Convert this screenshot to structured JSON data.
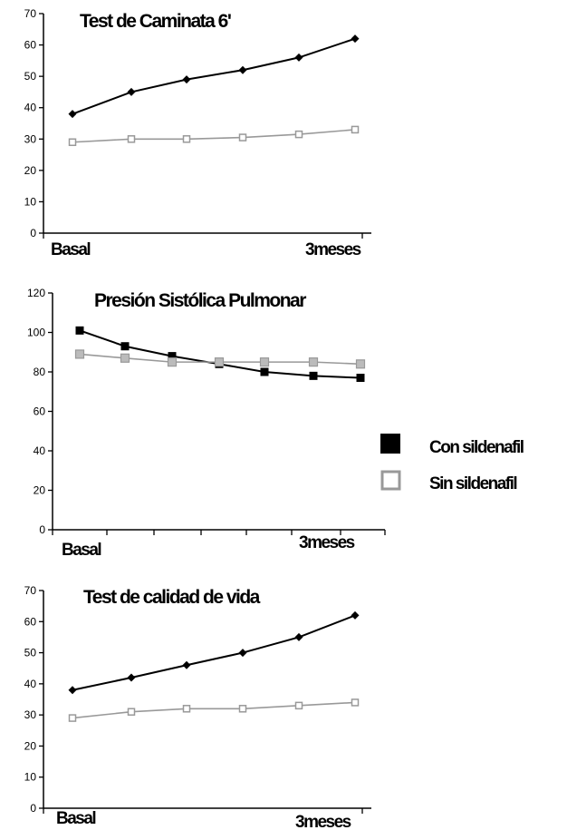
{
  "chart_data": [
    {
      "type": "line",
      "title": "Test de Caminata 6'",
      "xlabel": "",
      "ylabel": "",
      "ylim": [
        0,
        70
      ],
      "yticks": [
        0,
        10,
        20,
        30,
        40,
        50,
        60,
        70
      ],
      "x_labels": [
        "Basal",
        "3meses"
      ],
      "grid": false,
      "series": [
        {
          "name": "Con sildenafil",
          "values": [
            38,
            45,
            49,
            52,
            56,
            62
          ]
        },
        {
          "name": "Sin sildenafil",
          "values": [
            29,
            30,
            30,
            30.5,
            31.5,
            33
          ]
        }
      ]
    },
    {
      "type": "line",
      "title": "Presión Sistólica Pulmonar",
      "xlabel": "",
      "ylabel": "",
      "ylim": [
        0,
        120
      ],
      "yticks": [
        0,
        20,
        40,
        60,
        80,
        100,
        120
      ],
      "x_labels": [
        "Basal",
        "3meses"
      ],
      "grid": false,
      "series": [
        {
          "name": "Con sildenafil",
          "values": [
            101,
            93,
            88,
            84,
            80,
            78,
            77
          ]
        },
        {
          "name": "Sin sildenafil",
          "values": [
            89,
            87,
            85,
            85,
            85,
            85,
            84
          ]
        }
      ]
    },
    {
      "type": "line",
      "title": "Test de calidad de vida",
      "xlabel": "",
      "ylabel": "",
      "ylim": [
        0,
        70
      ],
      "yticks": [
        0,
        10,
        20,
        30,
        40,
        50,
        60,
        70
      ],
      "x_labels": [
        "Basal",
        "3meses"
      ],
      "grid": false,
      "series": [
        {
          "name": "Con sildenafil",
          "values": [
            38,
            42,
            46,
            50,
            55,
            62
          ]
        },
        {
          "name": "Sin sildenafil",
          "values": [
            29,
            31,
            32,
            32,
            33,
            34
          ]
        }
      ]
    }
  ],
  "legend": {
    "placement": "right",
    "items": [
      {
        "label": "Con sildenafil",
        "color": "#000000",
        "marker": "filled-square"
      },
      {
        "label": "Sin sildenafil",
        "color": "#999999",
        "marker": "hollow-square"
      }
    ]
  },
  "colors": {
    "con": "#000000",
    "sin": "#999999"
  }
}
